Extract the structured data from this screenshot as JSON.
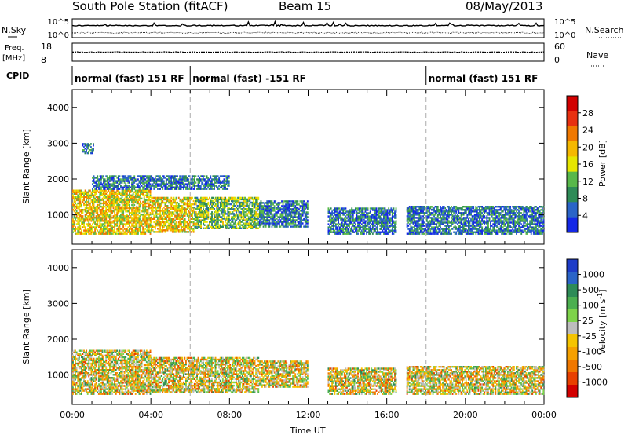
{
  "header": {
    "station": "South Pole Station (fitACF)",
    "beam": "Beam 15",
    "date": "08/May/2013"
  },
  "strip_panels": {
    "nsky": {
      "label": "N.Sky",
      "ticks_left": [
        "10^5",
        "10^0"
      ],
      "ticks_right": [
        "10^5",
        "10^0"
      ],
      "right_label": "N.Search"
    },
    "freq": {
      "label_top": "Freq.",
      "label_unit": "[MHz]",
      "ticks_left": [
        "18",
        "8"
      ],
      "ticks_right": [
        "60",
        "0"
      ],
      "right_label": "Nave"
    },
    "cpid": {
      "label": "CPID",
      "segments": [
        {
          "text": "normal (fast) 151 RF",
          "start_hour": 0
        },
        {
          "text": "normal (fast) -151 RF",
          "start_hour": 6
        },
        {
          "text": "normal (fast) 151 RF",
          "start_hour": 18
        }
      ]
    }
  },
  "chart_data": [
    {
      "type": "heatmap",
      "title": "Power",
      "ylabel": "Slant Range [km]",
      "ylim": [
        180,
        4500
      ],
      "yticks": [
        "1000",
        "2000",
        "3000",
        "4000"
      ],
      "xlim_hours": [
        0,
        24
      ],
      "colorbar": {
        "label": "Power [dB]",
        "ticks": [
          "4",
          "8",
          "12",
          "16",
          "20",
          "24",
          "28"
        ],
        "colors": [
          "#1428e6",
          "#2a64c8",
          "#2e8b57",
          "#58b84a",
          "#e6e600",
          "#f5b800",
          "#f07800",
          "#e83010",
          "#d20000"
        ]
      },
      "echo_regions": [
        {
          "t0": 0.0,
          "t1": 4.0,
          "r0": 450,
          "r1": 1700,
          "level": "high"
        },
        {
          "t0": 4.0,
          "t1": 6.2,
          "r0": 500,
          "r1": 1500,
          "level": "high"
        },
        {
          "t0": 6.2,
          "t1": 9.5,
          "r0": 600,
          "r1": 1500,
          "level": "mid"
        },
        {
          "t0": 9.5,
          "t1": 12.0,
          "r0": 650,
          "r1": 1400,
          "level": "low"
        },
        {
          "t0": 13.0,
          "t1": 16.5,
          "r0": 450,
          "r1": 1200,
          "level": "low"
        },
        {
          "t0": 17.0,
          "t1": 24.0,
          "r0": 450,
          "r1": 1250,
          "level": "low"
        },
        {
          "t0": 0.5,
          "t1": 1.1,
          "r0": 2700,
          "r1": 3000,
          "level": "low"
        },
        {
          "t0": 1.0,
          "t1": 8.0,
          "r0": 1700,
          "r1": 2100,
          "level": "low"
        }
      ]
    },
    {
      "type": "heatmap",
      "title": "Velocity",
      "ylabel": "Slant Range [km]",
      "ylim": [
        180,
        4500
      ],
      "yticks": [
        "1000",
        "2000",
        "3000",
        "4000"
      ],
      "xlim_hours": [
        0,
        24
      ],
      "xlabel": "Time UT",
      "xticks": [
        "00:00",
        "04:00",
        "08:00",
        "12:00",
        "16:00",
        "20:00",
        "00:00"
      ],
      "colorbar": {
        "label": "Velocity [m s^-1]",
        "ticks": [
          "1000",
          "500",
          "100",
          "25",
          "-25",
          "-100",
          "-500",
          "-1000"
        ],
        "colors": [
          "#1e3cc8",
          "#2a64c8",
          "#2e8b57",
          "#4caf50",
          "#7ed34a",
          "#bdbdbd",
          "#f5c400",
          "#f5a000",
          "#f07800",
          "#e84000",
          "#d20000"
        ]
      },
      "echo_regions": [
        {
          "t0": 0.0,
          "t1": 4.0,
          "r0": 450,
          "r1": 1700,
          "level": "mixed"
        },
        {
          "t0": 4.0,
          "t1": 9.5,
          "r0": 500,
          "r1": 1500,
          "level": "mixed"
        },
        {
          "t0": 9.5,
          "t1": 12.0,
          "r0": 650,
          "r1": 1400,
          "level": "mixed"
        },
        {
          "t0": 13.0,
          "t1": 16.5,
          "r0": 450,
          "r1": 1200,
          "level": "mixed"
        },
        {
          "t0": 17.0,
          "t1": 24.0,
          "r0": 450,
          "r1": 1250,
          "level": "mixed"
        }
      ]
    }
  ]
}
